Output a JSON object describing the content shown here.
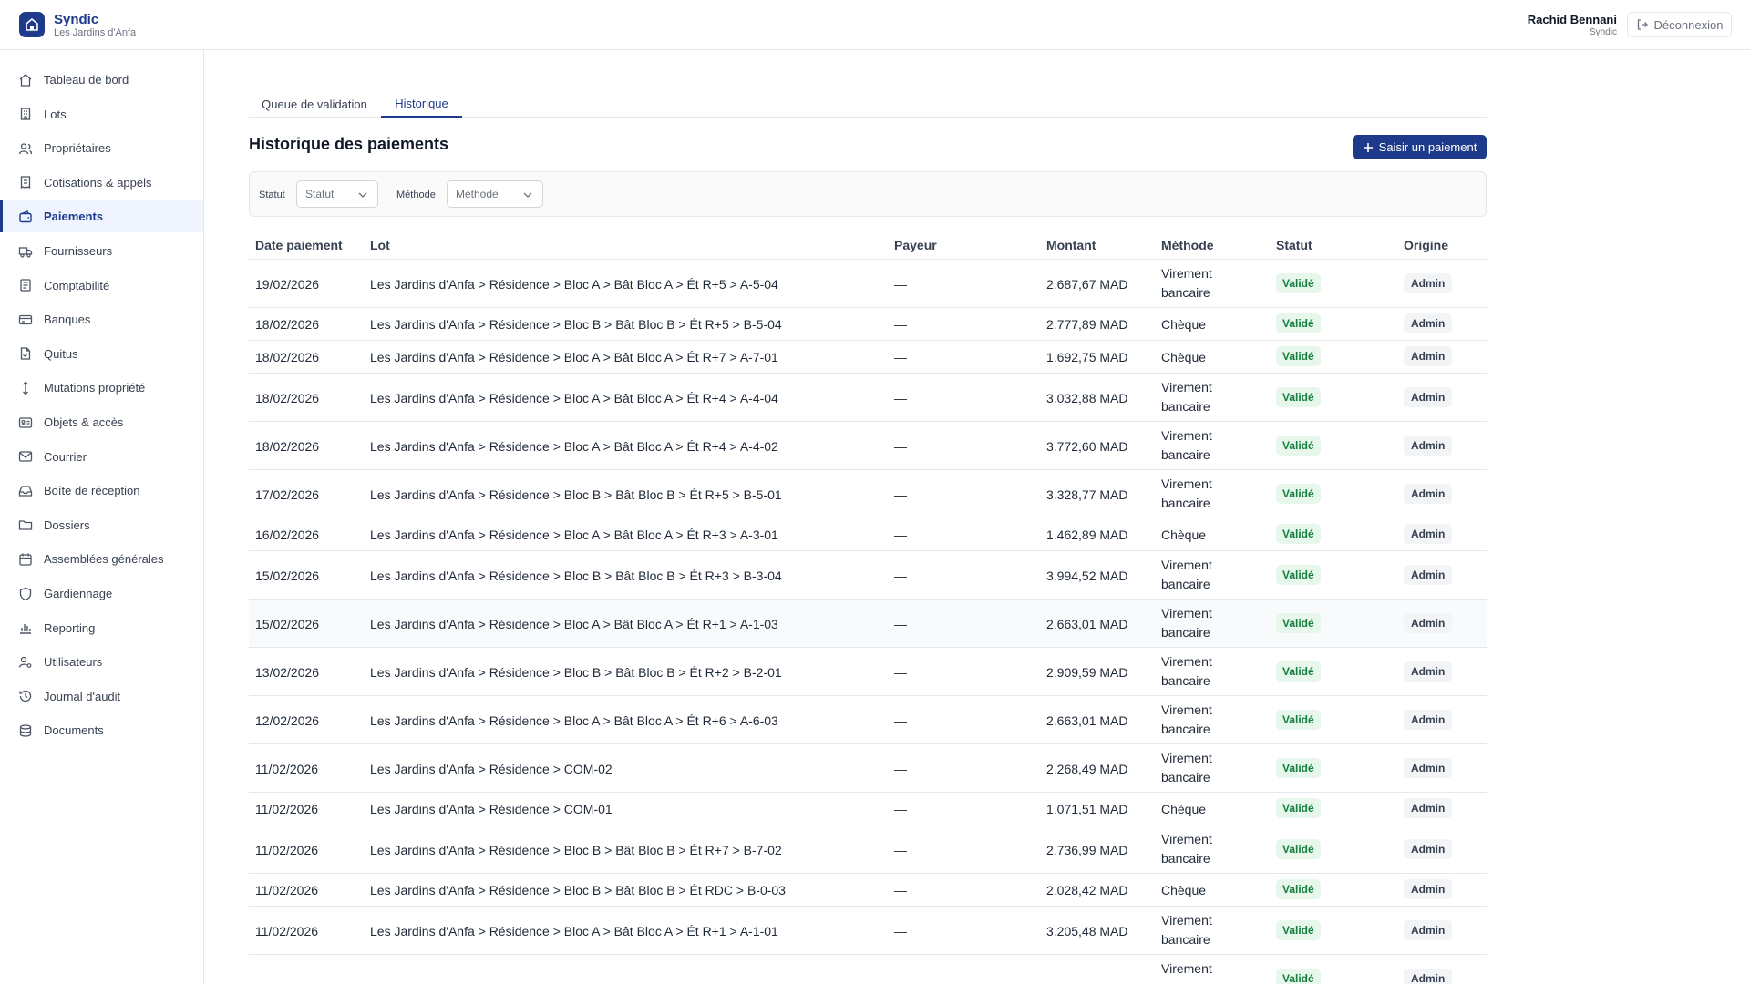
{
  "app": {
    "name": "Syndic",
    "residence": "Les Jardins d'Anfa",
    "user_name": "Rachid Bennani",
    "user_role": "Syndic",
    "logout_label": "Déconnexion",
    "accent": "#1e3a8a"
  },
  "sidebar": {
    "items": [
      {
        "label": "Tableau de bord",
        "icon": "home-icon"
      },
      {
        "label": "Lots",
        "icon": "building-icon"
      },
      {
        "label": "Propriétaires",
        "icon": "users-icon"
      },
      {
        "label": "Cotisations & appels",
        "icon": "receipt-icon"
      },
      {
        "label": "Paiements",
        "icon": "wallet-icon",
        "active": true
      },
      {
        "label": "Fournisseurs",
        "icon": "truck-icon"
      },
      {
        "label": "Comptabilité",
        "icon": "ledger-icon"
      },
      {
        "label": "Banques",
        "icon": "card-icon"
      },
      {
        "label": "Quitus",
        "icon": "file-check-icon"
      },
      {
        "label": "Mutations propriété",
        "icon": "arrows-vertical-icon"
      },
      {
        "label": "Objets & accès",
        "icon": "id-card-icon"
      },
      {
        "label": "Courrier",
        "icon": "mail-icon"
      },
      {
        "label": "Boîte de réception",
        "icon": "inbox-icon"
      },
      {
        "label": "Dossiers",
        "icon": "folder-icon"
      },
      {
        "label": "Assemblées générales",
        "icon": "calendar-icon"
      },
      {
        "label": "Gardiennage",
        "icon": "shield-icon"
      },
      {
        "label": "Reporting",
        "icon": "bar-chart-icon"
      },
      {
        "label": "Utilisateurs",
        "icon": "user-cog-icon"
      },
      {
        "label": "Journal d'audit",
        "icon": "history-icon"
      },
      {
        "label": "Documents",
        "icon": "database-icon"
      }
    ]
  },
  "tabs": [
    {
      "label": "Queue de validation"
    },
    {
      "label": "Historique",
      "active": true
    }
  ],
  "page": {
    "title": "Historique des paiements",
    "add_button": "Saisir un paiement"
  },
  "filters": {
    "status_label": "Statut",
    "status_placeholder": "Statut",
    "method_label": "Méthode",
    "method_placeholder": "Méthode"
  },
  "table": {
    "columns": [
      "Date paiement",
      "Lot",
      "Payeur",
      "Montant",
      "Méthode",
      "Statut",
      "Origine"
    ],
    "rows": [
      {
        "date": "19/02/2026",
        "lot": "Les Jardins d'Anfa > Résidence > Bloc A > Bât Bloc A > Ét R+5 > A-5-04",
        "payer": "—",
        "amount": "2.687,67 MAD",
        "method": "Virement bancaire",
        "status": "Validé",
        "origin": "Admin"
      },
      {
        "date": "18/02/2026",
        "lot": "Les Jardins d'Anfa > Résidence > Bloc B > Bât Bloc B > Ét R+5 > B-5-04",
        "payer": "—",
        "amount": "2.777,89 MAD",
        "method": "Chèque",
        "status": "Validé",
        "origin": "Admin"
      },
      {
        "date": "18/02/2026",
        "lot": "Les Jardins d'Anfa > Résidence > Bloc A > Bât Bloc A > Ét R+7 > A-7-01",
        "payer": "—",
        "amount": "1.692,75 MAD",
        "method": "Chèque",
        "status": "Validé",
        "origin": "Admin"
      },
      {
        "date": "18/02/2026",
        "lot": "Les Jardins d'Anfa > Résidence > Bloc A > Bât Bloc A > Ét R+4 > A-4-04",
        "payer": "—",
        "amount": "3.032,88 MAD",
        "method": "Virement bancaire",
        "status": "Validé",
        "origin": "Admin"
      },
      {
        "date": "18/02/2026",
        "lot": "Les Jardins d'Anfa > Résidence > Bloc A > Bât Bloc A > Ét R+4 > A-4-02",
        "payer": "—",
        "amount": "3.772,60 MAD",
        "method": "Virement bancaire",
        "status": "Validé",
        "origin": "Admin"
      },
      {
        "date": "17/02/2026",
        "lot": "Les Jardins d'Anfa > Résidence > Bloc B > Bât Bloc B > Ét R+5 > B-5-01",
        "payer": "—",
        "amount": "3.328,77 MAD",
        "method": "Virement bancaire",
        "status": "Validé",
        "origin": "Admin"
      },
      {
        "date": "16/02/2026",
        "lot": "Les Jardins d'Anfa > Résidence > Bloc A > Bât Bloc A > Ét R+3 > A-3-01",
        "payer": "—",
        "amount": "1.462,89 MAD",
        "method": "Chèque",
        "status": "Validé",
        "origin": "Admin"
      },
      {
        "date": "15/02/2026",
        "lot": "Les Jardins d'Anfa > Résidence > Bloc B > Bât Bloc B > Ét R+3 > B-3-04",
        "payer": "—",
        "amount": "3.994,52 MAD",
        "method": "Virement bancaire",
        "status": "Validé",
        "origin": "Admin"
      },
      {
        "date": "15/02/2026",
        "lot": "Les Jardins d'Anfa > Résidence > Bloc A > Bât Bloc A > Ét R+1 > A-1-03",
        "payer": "—",
        "amount": "2.663,01 MAD",
        "method": "Virement bancaire",
        "status": "Validé",
        "origin": "Admin"
      },
      {
        "date": "13/02/2026",
        "lot": "Les Jardins d'Anfa > Résidence > Bloc B > Bât Bloc B > Ét R+2 > B-2-01",
        "payer": "—",
        "amount": "2.909,59 MAD",
        "method": "Virement bancaire",
        "status": "Validé",
        "origin": "Admin"
      },
      {
        "date": "12/02/2026",
        "lot": "Les Jardins d'Anfa > Résidence > Bloc A > Bât Bloc A > Ét R+6 > A-6-03",
        "payer": "—",
        "amount": "2.663,01 MAD",
        "method": "Virement bancaire",
        "status": "Validé",
        "origin": "Admin"
      },
      {
        "date": "11/02/2026",
        "lot": "Les Jardins d'Anfa > Résidence > COM-02",
        "payer": "—",
        "amount": "2.268,49 MAD",
        "method": "Virement bancaire",
        "status": "Validé",
        "origin": "Admin"
      },
      {
        "date": "11/02/2026",
        "lot": "Les Jardins d'Anfa > Résidence > COM-01",
        "payer": "—",
        "amount": "1.071,51 MAD",
        "method": "Chèque",
        "status": "Validé",
        "origin": "Admin"
      },
      {
        "date": "11/02/2026",
        "lot": "Les Jardins d'Anfa > Résidence > Bloc B > Bât Bloc B > Ét R+7 > B-7-02",
        "payer": "—",
        "amount": "2.736,99 MAD",
        "method": "Virement bancaire",
        "status": "Validé",
        "origin": "Admin"
      },
      {
        "date": "11/02/2026",
        "lot": "Les Jardins d'Anfa > Résidence > Bloc B > Bât Bloc B > Ét RDC > B-0-03",
        "payer": "—",
        "amount": "2.028,42 MAD",
        "method": "Chèque",
        "status": "Validé",
        "origin": "Admin"
      },
      {
        "date": "11/02/2026",
        "lot": "Les Jardins d'Anfa > Résidence > Bloc A > Bât Bloc A > Ét R+1 > A-1-01",
        "payer": "—",
        "amount": "3.205,48 MAD",
        "method": "Virement bancaire",
        "status": "Validé",
        "origin": "Admin"
      },
      {
        "date": "",
        "lot": "",
        "payer": "",
        "amount": "",
        "method": "Virement",
        "status": "Validé",
        "origin": "Admin"
      }
    ]
  }
}
